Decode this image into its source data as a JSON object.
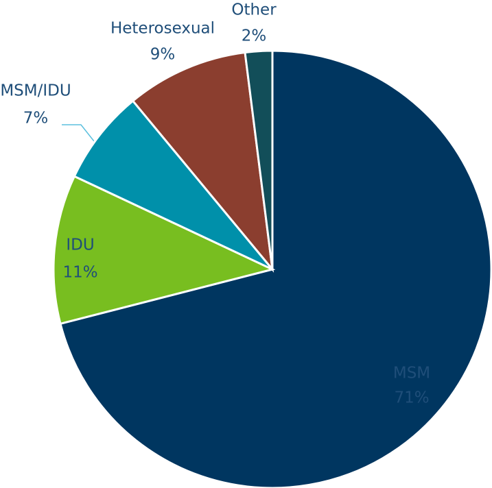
{
  "chart_data": {
    "type": "pie",
    "categories": [
      "MSM",
      "IDU",
      "MSM/IDU",
      "Heterosexual",
      "Other"
    ],
    "values": [
      71,
      11,
      7,
      9,
      2
    ],
    "value_labels": [
      "71%",
      "11%",
      "7%",
      "9%",
      "2%"
    ],
    "colors": [
      "#003660",
      "#78be20",
      "#0090aa",
      "#8b3e2f",
      "#124e59"
    ]
  }
}
